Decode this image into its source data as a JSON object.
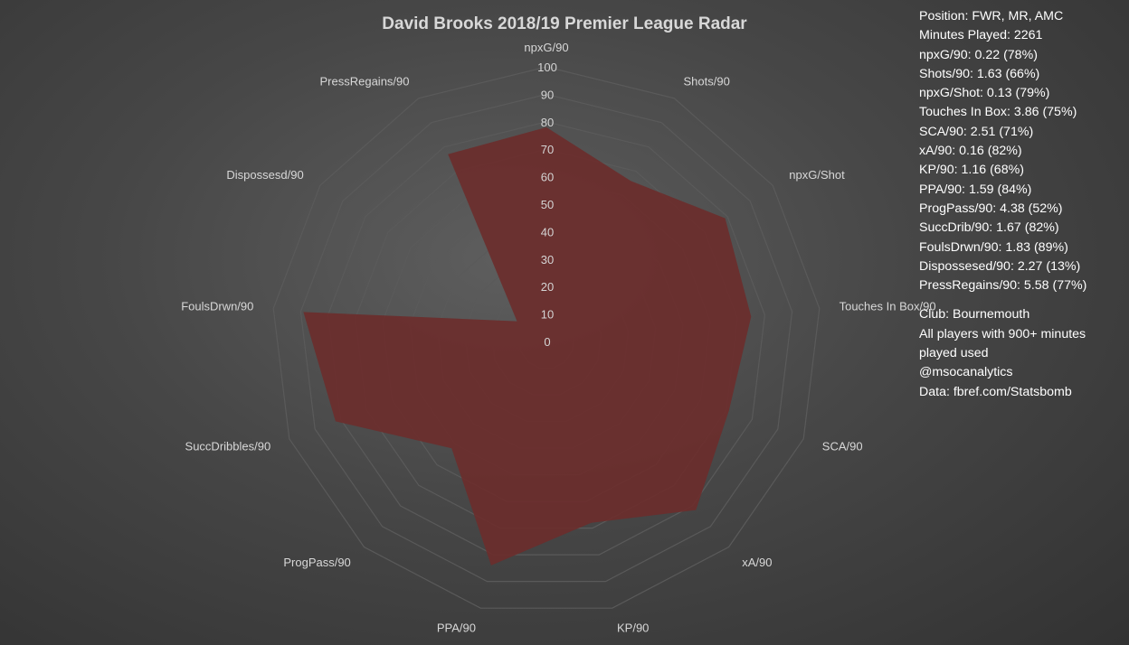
{
  "chart_data": {
    "type": "radar",
    "title": "David Brooks 2018/19 Premier League Radar",
    "axes": [
      "npxG/90",
      "Shots/90",
      "npxG/Shot",
      "Touches In Box/90",
      "SCA/90",
      "xA/90",
      "KP/90",
      "PPA/90",
      "ProgPass/90",
      "SuccDribbles/90",
      "FoulsDrwn/90",
      "Dispossesd/90",
      "PressRegains/90"
    ],
    "values": [
      78,
      66,
      79,
      75,
      71,
      82,
      68,
      84,
      52,
      82,
      89,
      13,
      77
    ],
    "rlim": [
      0,
      100
    ],
    "ticks": [
      0,
      10,
      20,
      30,
      40,
      50,
      60,
      70,
      80,
      90,
      100
    ],
    "fill_color": "#6b2e2c",
    "grid_color": "#5a5a5a"
  },
  "info": {
    "position": "Position: FWR, MR, AMC",
    "minutes": "Minutes Played: 2261",
    "stats": [
      "npxG/90: 0.22 (78%)",
      "Shots/90: 1.63 (66%)",
      "npxG/Shot: 0.13 (79%)",
      "Touches In Box: 3.86 (75%)",
      "SCA/90: 2.51 (71%)",
      "xA/90: 0.16 (82%)",
      "KP/90: 1.16 (68%)",
      "PPA/90: 1.59 (84%)",
      "ProgPass/90: 4.38 (52%)",
      "SuccDrib/90: 1.67 (82%)",
      "FoulsDrwn/90: 1.83 (89%)",
      "Dispossesed/90: 2.27 (13%)",
      "PressRegains/90: 5.58 (77%)"
    ],
    "club": "Club: Bournemouth",
    "note": "All players with 900+ minutes played used",
    "handle": "@msocanalytics",
    "source": "Data: fbref.com/Statsbomb"
  }
}
